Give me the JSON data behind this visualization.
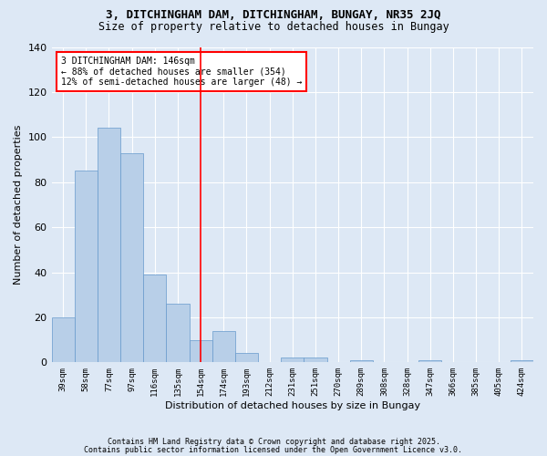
{
  "title1": "3, DITCHINGHAM DAM, DITCHINGHAM, BUNGAY, NR35 2JQ",
  "title2": "Size of property relative to detached houses in Bungay",
  "xlabel": "Distribution of detached houses by size in Bungay",
  "ylabel": "Number of detached properties",
  "bar_labels": [
    "39sqm",
    "58sqm",
    "77sqm",
    "97sqm",
    "116sqm",
    "135sqm",
    "154sqm",
    "174sqm",
    "193sqm",
    "212sqm",
    "231sqm",
    "251sqm",
    "270sqm",
    "289sqm",
    "308sqm",
    "328sqm",
    "347sqm",
    "366sqm",
    "385sqm",
    "405sqm",
    "424sqm"
  ],
  "bar_values": [
    20,
    85,
    104,
    93,
    39,
    26,
    10,
    14,
    4,
    0,
    2,
    2,
    0,
    1,
    0,
    0,
    1,
    0,
    0,
    0,
    1
  ],
  "bar_color": "#b8cfe8",
  "bar_edge_color": "#6699cc",
  "background_color": "#dde8f5",
  "grid_color": "#ffffff",
  "vline_x": 6.0,
  "vline_color": "red",
  "annotation_text": "3 DITCHINGHAM DAM: 146sqm\n← 88% of detached houses are smaller (354)\n12% of semi-detached houses are larger (48) →",
  "annotation_box_color": "white",
  "annotation_box_edge_color": "red",
  "ylim": [
    0,
    140
  ],
  "yticks": [
    0,
    20,
    40,
    60,
    80,
    100,
    120,
    140
  ],
  "footer1": "Contains HM Land Registry data © Crown copyright and database right 2025.",
  "footer2": "Contains public sector information licensed under the Open Government Licence v3.0."
}
